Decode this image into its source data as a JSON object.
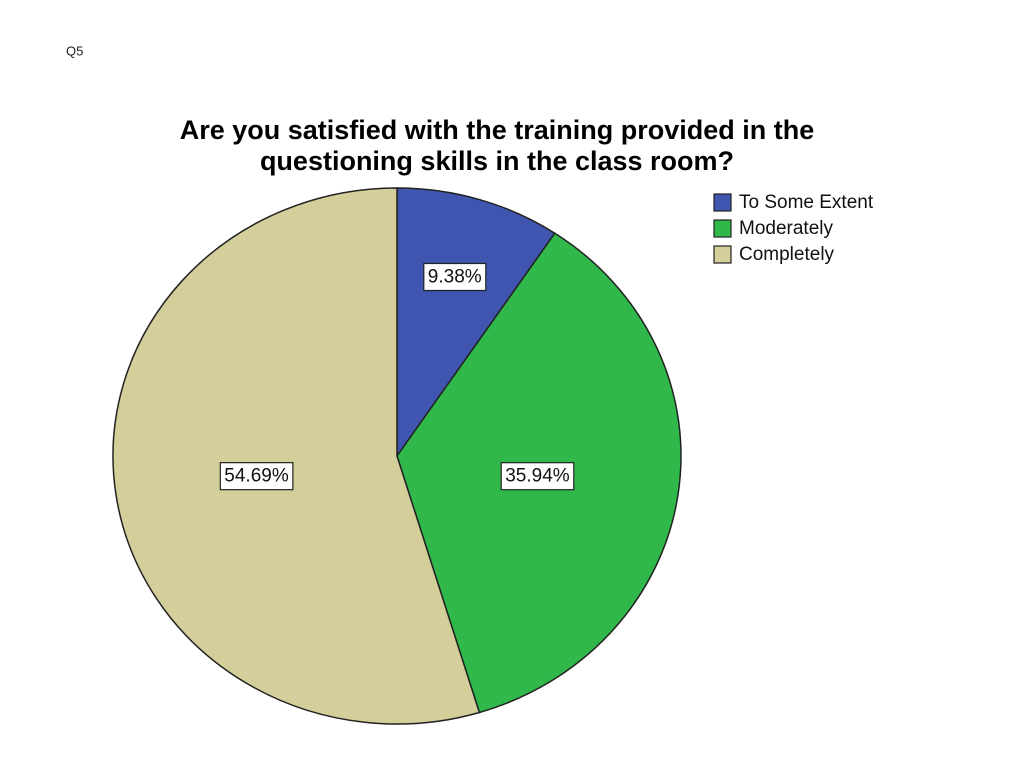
{
  "slide_label": "Q5",
  "chart_data": {
    "type": "pie",
    "title": [
      "Are you satisfied with the training provided in the",
      "questioning skills in the class room?"
    ],
    "categories": [
      "To Some Extent",
      "Moderately",
      "Completely"
    ],
    "values": [
      9.38,
      35.94,
      54.69
    ],
    "value_labels": [
      "9.38%",
      "35.94%",
      "54.69%"
    ],
    "colors": [
      "#3f55b0",
      "#30b94a",
      "#d4cf9a"
    ],
    "legend": "top-right"
  }
}
